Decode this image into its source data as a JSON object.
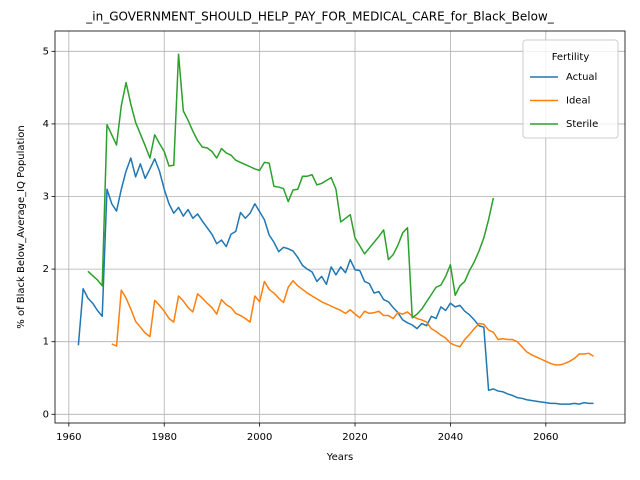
{
  "chart_data": {
    "type": "line",
    "title": "_in_GOVERNMENT_SHOULD_HELP_PAY_FOR_MEDICAL_CARE_for_Black_Below_",
    "x_label": "Years",
    "y_label": "% of Black Below_Average_IQ Population",
    "legend_title": "Fertility",
    "legend_position": "upper right",
    "grid": true,
    "xlim": [
      1957.1,
      2076.6
    ],
    "ylim": [
      -0.12,
      5.28
    ],
    "xticks": [
      1960,
      1980,
      2000,
      2020,
      2040,
      2060
    ],
    "yticks": [
      0,
      1,
      2,
      3,
      4,
      5
    ],
    "x": [
      1962,
      1963,
      1964,
      1965,
      1966,
      1967,
      1968,
      1969,
      1970,
      1971,
      1972,
      1973,
      1974,
      1975,
      1976,
      1977,
      1978,
      1979,
      1980,
      1981,
      1982,
      1983,
      1984,
      1985,
      1986,
      1987,
      1988,
      1989,
      1990,
      1991,
      1992,
      1993,
      1994,
      1995,
      1996,
      1997,
      1998,
      1999,
      2000,
      2001,
      2002,
      2003,
      2004,
      2005,
      2006,
      2007,
      2008,
      2009,
      2010,
      2011,
      2012,
      2013,
      2014,
      2015,
      2016,
      2017,
      2018,
      2019,
      2020,
      2021,
      2022,
      2023,
      2024,
      2025,
      2026,
      2027,
      2028,
      2029,
      2030,
      2031,
      2032,
      2033,
      2034,
      2035,
      2036,
      2037,
      2038,
      2039,
      2040,
      2041,
      2042,
      2043,
      2044,
      2045,
      2046,
      2047,
      2048,
      2049,
      2050,
      2051,
      2052,
      2053,
      2054,
      2055,
      2056,
      2057,
      2058,
      2059,
      2060,
      2061,
      2062,
      2063,
      2064,
      2065,
      2066,
      2067,
      2068,
      2069,
      2070
    ],
    "series": [
      {
        "name": "Actual",
        "color": "#1f77b4",
        "values": [
          0.95,
          1.73,
          1.6,
          1.53,
          1.43,
          1.35,
          3.1,
          2.9,
          2.8,
          3.1,
          3.35,
          3.53,
          3.27,
          3.45,
          3.25,
          3.38,
          3.52,
          3.35,
          3.1,
          2.9,
          2.77,
          2.85,
          2.73,
          2.82,
          2.7,
          2.76,
          2.66,
          2.57,
          2.48,
          2.35,
          2.4,
          2.31,
          2.48,
          2.52,
          2.78,
          2.7,
          2.77,
          2.9,
          2.79,
          2.68,
          2.47,
          2.37,
          2.24,
          2.3,
          2.28,
          2.25,
          2.16,
          2.05,
          2.0,
          1.96,
          1.83,
          1.9,
          1.79,
          2.03,
          1.92,
          2.03,
          1.95,
          2.13,
          1.99,
          1.98,
          1.83,
          1.8,
          1.67,
          1.69,
          1.58,
          1.55,
          1.47,
          1.4,
          1.3,
          1.26,
          1.23,
          1.18,
          1.25,
          1.22,
          1.35,
          1.32,
          1.48,
          1.43,
          1.53,
          1.48,
          1.5,
          1.42,
          1.37,
          1.3,
          1.22,
          1.2,
          0.33,
          0.35,
          0.32,
          0.31,
          0.28,
          0.26,
          0.23,
          0.22,
          0.2,
          0.19,
          0.18,
          0.17,
          0.16,
          0.15,
          0.15,
          0.14,
          0.14,
          0.14,
          0.15,
          0.14,
          0.16,
          0.15,
          0.15
        ]
      },
      {
        "name": "Ideal",
        "color": "#ff7f0e",
        "values": [
          null,
          null,
          null,
          null,
          null,
          null,
          null,
          0.97,
          0.94,
          1.71,
          1.6,
          1.45,
          1.28,
          1.2,
          1.12,
          1.07,
          1.57,
          1.5,
          1.42,
          1.32,
          1.27,
          1.63,
          1.56,
          1.47,
          1.41,
          1.66,
          1.6,
          1.53,
          1.47,
          1.38,
          1.58,
          1.51,
          1.47,
          1.39,
          1.36,
          1.32,
          1.27,
          1.63,
          1.55,
          1.83,
          1.72,
          1.67,
          1.6,
          1.54,
          1.75,
          1.84,
          1.77,
          1.72,
          1.67,
          1.63,
          1.59,
          1.55,
          1.52,
          1.49,
          1.46,
          1.43,
          1.39,
          1.44,
          1.38,
          1.33,
          1.42,
          1.39,
          1.4,
          1.42,
          1.36,
          1.36,
          1.32,
          1.4,
          1.38,
          1.41,
          1.35,
          1.32,
          1.3,
          1.27,
          1.18,
          1.14,
          1.09,
          1.05,
          0.98,
          0.95,
          0.93,
          1.03,
          1.1,
          1.18,
          1.25,
          1.24,
          1.16,
          1.13,
          1.03,
          1.04,
          1.03,
          1.03,
          1.0,
          0.93,
          0.86,
          0.82,
          0.79,
          0.76,
          0.73,
          0.7,
          0.68,
          0.68,
          0.7,
          0.73,
          0.77,
          0.83,
          0.83,
          0.84,
          0.8
        ]
      },
      {
        "name": "Sterile",
        "color": "#2ca02c",
        "values": [
          null,
          null,
          1.97,
          1.91,
          1.85,
          1.77,
          3.99,
          3.85,
          3.71,
          4.25,
          4.57,
          4.27,
          4.02,
          3.86,
          3.7,
          3.53,
          3.85,
          3.73,
          3.62,
          3.42,
          3.43,
          4.96,
          4.18,
          4.05,
          3.9,
          3.77,
          3.68,
          3.67,
          3.62,
          3.53,
          3.66,
          3.6,
          3.57,
          3.5,
          3.47,
          3.44,
          3.41,
          3.38,
          3.36,
          3.47,
          3.46,
          3.14,
          3.13,
          3.11,
          2.93,
          3.09,
          3.1,
          3.28,
          3.28,
          3.3,
          3.16,
          3.18,
          3.22,
          3.26,
          3.1,
          2.65,
          2.7,
          2.75,
          2.43,
          2.32,
          2.21,
          2.29,
          2.37,
          2.45,
          2.54,
          2.13,
          2.2,
          2.33,
          2.5,
          2.57,
          1.33,
          1.38,
          1.45,
          1.55,
          1.65,
          1.75,
          1.78,
          1.9,
          2.06,
          1.64,
          1.77,
          1.83,
          1.98,
          2.1,
          2.25,
          2.43,
          2.68,
          2.98,
          null,
          null,
          null,
          null,
          null,
          null,
          null,
          null,
          null,
          null,
          null,
          null,
          null,
          null,
          null,
          null,
          null,
          null,
          null,
          null,
          null
        ]
      }
    ]
  }
}
